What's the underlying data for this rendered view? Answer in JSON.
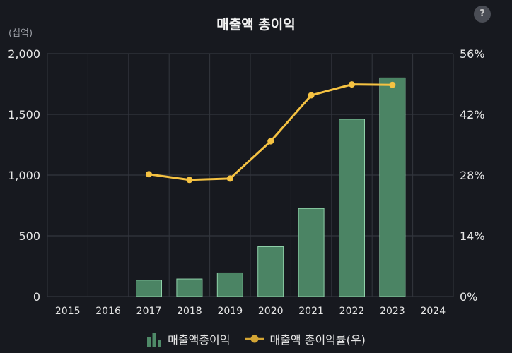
{
  "chart_data": {
    "type": "bar",
    "title": "매출액 총이익",
    "y_unit": "(십억)",
    "categories": [
      "2015",
      "2016",
      "2017",
      "2018",
      "2019",
      "2020",
      "2021",
      "2022",
      "2023",
      "2024"
    ],
    "series": [
      {
        "name": "매출액총이익",
        "type": "bar",
        "axis": "left",
        "color": "#4f8a68",
        "values": [
          null,
          null,
          135,
          145,
          195,
          410,
          725,
          1460,
          1800,
          null
        ]
      },
      {
        "name": "매출액 총이익률(우)",
        "type": "line",
        "axis": "right",
        "color": "#f5c242",
        "values": [
          null,
          null,
          28.2,
          26.9,
          27.2,
          35.8,
          46.4,
          48.9,
          48.8,
          null
        ]
      }
    ],
    "y_left": {
      "min": 0,
      "max": 2000,
      "ticks": [
        "0",
        "500",
        "1,000",
        "1,500",
        "2,000"
      ]
    },
    "y_right": {
      "min": 0,
      "max": 56,
      "ticks": [
        "0%",
        "14%",
        "28%",
        "42%",
        "56%"
      ]
    },
    "grid": true,
    "legend_position": "bottom"
  },
  "help_label": "?"
}
